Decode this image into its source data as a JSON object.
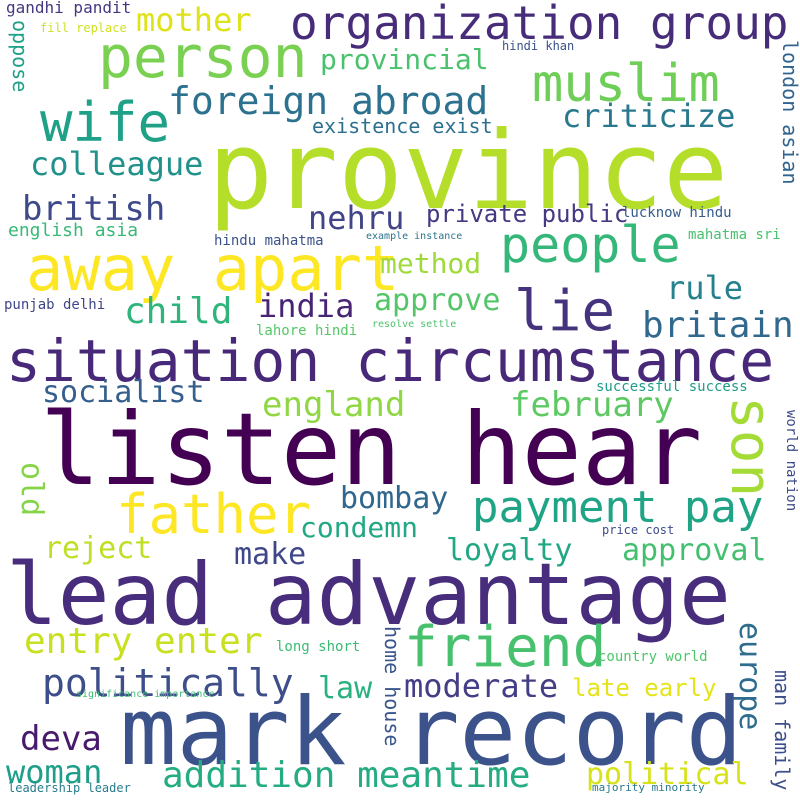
{
  "words": [
    {
      "text": "province",
      "color": "#b5de2b"
    },
    {
      "text": "listen hear",
      "color": "#440154"
    },
    {
      "text": "lead advantage",
      "color": "#472d7b"
    },
    {
      "text": "mark record",
      "color": "#3b528b"
    },
    {
      "text": "situation circumstance",
      "color": "#482878"
    },
    {
      "text": "organization group",
      "color": "#472c7a"
    },
    {
      "text": "person",
      "color": "#7ad151"
    },
    {
      "text": "muslim",
      "color": "#6ece58"
    },
    {
      "text": "wife",
      "color": "#1fa187"
    },
    {
      "text": "foreign abroad",
      "color": "#2c728e"
    },
    {
      "text": "mother",
      "color": "#dde318"
    },
    {
      "text": "provincial",
      "color": "#4ac16d"
    },
    {
      "text": "criticize",
      "color": "#2a788e"
    },
    {
      "text": "existence exist",
      "color": "#2d708e"
    },
    {
      "text": "colleague",
      "color": "#21918c"
    },
    {
      "text": "british",
      "color": "#3e4989"
    },
    {
      "text": "nehru",
      "color": "#414487"
    },
    {
      "text": "private public",
      "color": "#443983"
    },
    {
      "text": "people",
      "color": "#35b779"
    },
    {
      "text": "away apart",
      "color": "#fde725"
    },
    {
      "text": "lie",
      "color": "#46337e"
    },
    {
      "text": "method",
      "color": "#9fda3a"
    },
    {
      "text": "india",
      "color": "#482475"
    },
    {
      "text": "approve",
      "color": "#54c568"
    },
    {
      "text": "child",
      "color": "#2fb47c"
    },
    {
      "text": "rule",
      "color": "#26818e"
    },
    {
      "text": "britain",
      "color": "#31688e"
    },
    {
      "text": "son",
      "color": "#a5db36"
    },
    {
      "text": "father",
      "color": "#fde725"
    },
    {
      "text": "payment pay",
      "color": "#20a486"
    },
    {
      "text": "socialist",
      "color": "#355f8d"
    },
    {
      "text": "england",
      "color": "#90d743"
    },
    {
      "text": "february",
      "color": "#5ec962"
    },
    {
      "text": "bombay",
      "color": "#30678d"
    },
    {
      "text": "condemn",
      "color": "#22a884"
    },
    {
      "text": "reject",
      "color": "#bddf26"
    },
    {
      "text": "make",
      "color": "#3f4788"
    },
    {
      "text": "loyalty",
      "color": "#22a785"
    },
    {
      "text": "approval",
      "color": "#44bf70"
    },
    {
      "text": "old",
      "color": "#86d549"
    },
    {
      "text": "entry enter",
      "color": "#c8e020"
    },
    {
      "text": "friend",
      "color": "#48c16e"
    },
    {
      "text": "politically",
      "color": "#3d4e8a"
    },
    {
      "text": "law",
      "color": "#2bb07f"
    },
    {
      "text": "moderate",
      "color": "#433e85"
    },
    {
      "text": "late early",
      "color": "#e5e419"
    },
    {
      "text": "europe",
      "color": "#2f6c8e"
    },
    {
      "text": "deva",
      "color": "#481a6c"
    },
    {
      "text": "woman",
      "color": "#1f9e89"
    },
    {
      "text": "addition meantime",
      "color": "#25ac82"
    },
    {
      "text": "political",
      "color": "#d8e219"
    },
    {
      "text": "man family",
      "color": "#3c4f8a"
    },
    {
      "text": "home house",
      "color": "#39558c"
    },
    {
      "text": "oppose",
      "color": "#1fa088"
    },
    {
      "text": "gandhi pandit",
      "color": "#453781"
    },
    {
      "text": "fill replace",
      "color": "#d0e11c"
    },
    {
      "text": "hindi khan",
      "color": "#3b518b"
    },
    {
      "text": "london asian",
      "color": "#32648e"
    },
    {
      "text": "english asia",
      "color": "#38b977"
    },
    {
      "text": "lucknow hindu",
      "color": "#365c8d"
    },
    {
      "text": "hindu mahatma",
      "color": "#3a538b"
    },
    {
      "text": "example instance",
      "color": "#2c738e"
    },
    {
      "text": "mahatma sri",
      "color": "#48c16e"
    },
    {
      "text": "punjab delhi",
      "color": "#404588"
    },
    {
      "text": "lahore hindi",
      "color": "#56c667"
    },
    {
      "text": "resolve settle",
      "color": "#4cc26c"
    },
    {
      "text": "successful success",
      "color": "#1e9c89"
    },
    {
      "text": "world nation",
      "color": "#3e4a89"
    },
    {
      "text": "price cost",
      "color": "#3d4d8a"
    },
    {
      "text": "long short",
      "color": "#3bbb75"
    },
    {
      "text": "country world",
      "color": "#50c46a"
    },
    {
      "text": "significance importance",
      "color": "#3cbc74"
    },
    {
      "text": "leadership leader",
      "color": "#287d8e"
    },
    {
      "text": "majority minority",
      "color": "#2a778e"
    }
  ]
}
